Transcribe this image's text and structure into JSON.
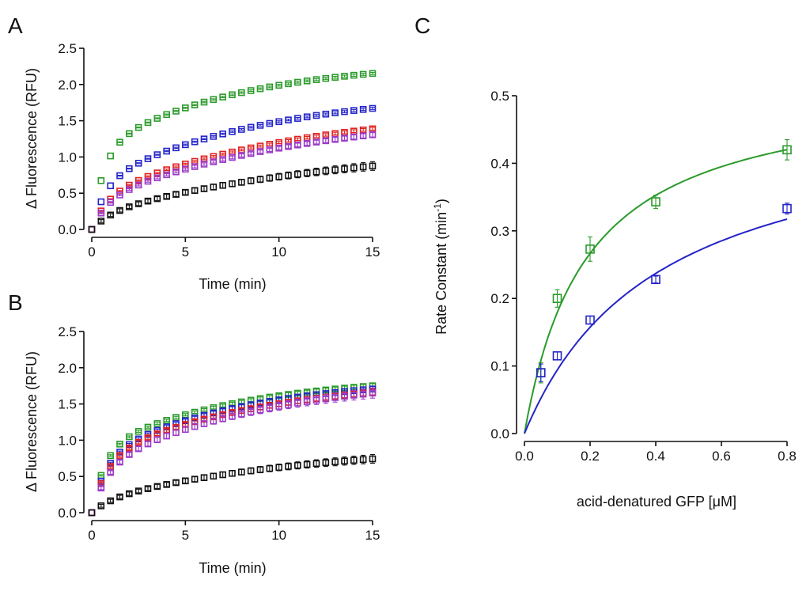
{
  "figure": {
    "panels": [
      {
        "id": "A",
        "label": "A"
      },
      {
        "id": "B",
        "label": "B"
      },
      {
        "id": "C",
        "label": "C"
      }
    ]
  },
  "chart_data": [
    {
      "panel": "A",
      "type": "scatter",
      "title": "",
      "xlabel": "Time (min)",
      "ylabel": "Δ Fluorescence (RFU)",
      "xlim": [
        0,
        15
      ],
      "ylim": [
        0,
        2.5
      ],
      "xticks": [
        0,
        5,
        10,
        15
      ],
      "yticks": [
        0.0,
        0.5,
        1.0,
        1.5,
        2.0,
        2.5
      ],
      "xticklabels": [
        "0",
        "5",
        "10",
        "15"
      ],
      "yticklabels": [
        "0.0",
        "0.5",
        "1.0",
        "1.5",
        "2.0",
        "2.5"
      ],
      "series": [
        {
          "name": "green",
          "color": "#2a9a2a",
          "model": {
            "a": 1.08,
            "b": 1.25,
            "k": 0.13,
            "kf": 1.6
          },
          "err": 0.015
        },
        {
          "name": "blue",
          "color": "#2424c8",
          "model": {
            "a": 0.62,
            "b": 1.3,
            "k": 0.11,
            "kf": 1.4
          },
          "err": 0.015
        },
        {
          "name": "red",
          "color": "#e02020",
          "model": {
            "a": 0.44,
            "b": 1.28,
            "k": 0.09,
            "kf": 1.2
          },
          "err": 0.02
        },
        {
          "name": "purple",
          "color": "#9a3ac8",
          "model": {
            "a": 0.38,
            "b": 1.25,
            "k": 0.09,
            "kf": 1.2
          },
          "err": 0.03
        },
        {
          "name": "black",
          "color": "#111111",
          "model": {
            "a": 0.2,
            "b": 1.0,
            "k": 0.075,
            "kf": 1.0
          },
          "err": 0.06
        }
      ]
    },
    {
      "panel": "B",
      "type": "scatter",
      "title": "",
      "xlabel": "Time (min)",
      "ylabel": "Δ Fluorescence (RFU)",
      "xlim": [
        0,
        15
      ],
      "ylim": [
        0,
        2.5
      ],
      "xticks": [
        0,
        5,
        10,
        15
      ],
      "yticks": [
        0.0,
        0.5,
        1.0,
        1.5,
        2.0,
        2.5
      ],
      "xticklabels": [
        "0",
        "5",
        "10",
        "15"
      ],
      "yticklabels": [
        "0.0",
        "0.5",
        "1.0",
        "1.5",
        "2.0",
        "2.5"
      ],
      "series": [
        {
          "name": "green",
          "color": "#2a9a2a",
          "model": {
            "a": 0.85,
            "b": 1.05,
            "k": 0.13,
            "kf": 1.5
          },
          "err": 0.03
        },
        {
          "name": "blue",
          "color": "#2424c8",
          "model": {
            "a": 0.72,
            "b": 1.15,
            "k": 0.13,
            "kf": 1.4
          },
          "err": 0.04
        },
        {
          "name": "red",
          "color": "#e02020",
          "model": {
            "a": 0.7,
            "b": 1.15,
            "k": 0.12,
            "kf": 1.3
          },
          "err": 0.05
        },
        {
          "name": "purple",
          "color": "#9a3ac8",
          "model": {
            "a": 0.6,
            "b": 1.3,
            "k": 0.11,
            "kf": 1.2
          },
          "err": 0.07
        },
        {
          "name": "black",
          "color": "#111111",
          "model": {
            "a": 0.15,
            "b": 0.8,
            "k": 0.09,
            "kf": 1.0
          },
          "err": 0.06
        }
      ]
    },
    {
      "panel": "C",
      "type": "scatter",
      "title": "",
      "xlabel": "acid-denatured GFP [μM]",
      "ylabel_main": "Rate Constant (min",
      "ylabel_sup": "-1",
      "ylabel_close": ")",
      "xlim": [
        0,
        0.8
      ],
      "ylim": [
        0,
        0.5
      ],
      "xticks": [
        0.0,
        0.2,
        0.4,
        0.6,
        0.8
      ],
      "yticks": [
        0.0,
        0.1,
        0.2,
        0.3,
        0.4,
        0.5
      ],
      "xticklabels": [
        "0.0",
        "0.2",
        "0.4",
        "0.6",
        "0.8"
      ],
      "yticklabels": [
        "0.0",
        "0.1",
        "0.2",
        "0.3",
        "0.4",
        "0.5"
      ],
      "series": [
        {
          "name": "green",
          "color": "#2a9a2a",
          "x": [
            0.05,
            0.1,
            0.2,
            0.4,
            0.8
          ],
          "y": [
            0.09,
            0.2,
            0.273,
            0.343,
            0.42
          ],
          "yerr": [
            0.015,
            0.013,
            0.018,
            0.01,
            0.015
          ],
          "fit": {
            "vmax": 0.52,
            "km": 0.19
          }
        },
        {
          "name": "blue",
          "color": "#2424c8",
          "x": [
            0.05,
            0.1,
            0.2,
            0.4,
            0.8
          ],
          "y": [
            0.09,
            0.115,
            0.168,
            0.228,
            0.333
          ],
          "yerr": [
            0.013,
            0.006,
            0.006,
            0.005,
            0.008
          ],
          "fit": {
            "vmax": 0.48,
            "km": 0.41
          }
        }
      ]
    }
  ]
}
